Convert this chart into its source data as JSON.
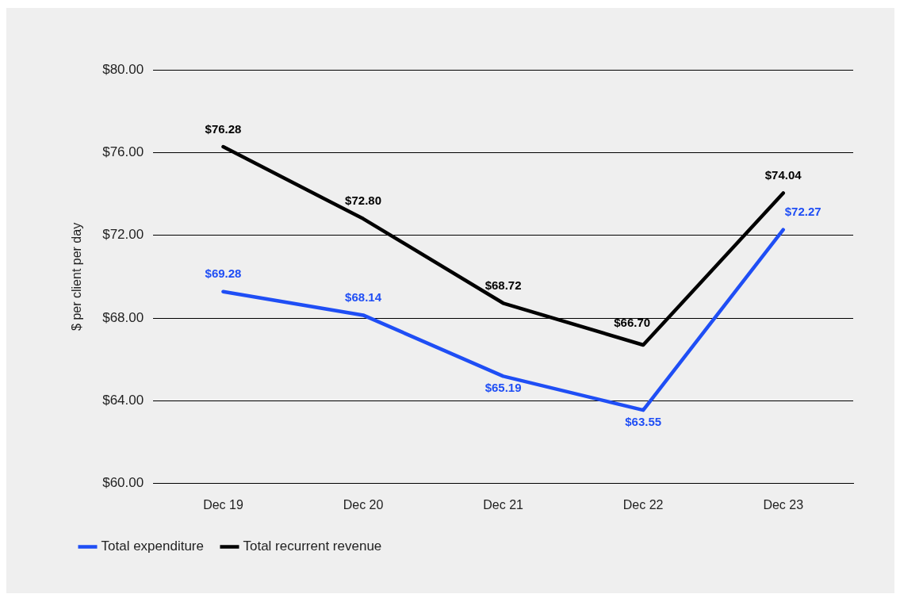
{
  "chart_data": {
    "type": "line",
    "ylabel": "$ per client per day",
    "categories": [
      "Dec 19",
      "Dec 20",
      "Dec 21",
      "Dec 22",
      "Dec 23"
    ],
    "series": [
      {
        "name": "Total expenditure",
        "color": "#1f4ef5",
        "values": [
          69.28,
          68.14,
          65.19,
          63.55,
          72.27
        ],
        "value_labels": [
          "$69.28",
          "$68.14",
          "$65.19",
          "$63.55",
          "$72.27"
        ]
      },
      {
        "name": "Total recurrent revenue",
        "color": "#000000",
        "values": [
          76.28,
          72.8,
          68.72,
          66.7,
          74.04
        ],
        "value_labels": [
          "$76.28",
          "$72.80",
          "$68.72",
          "$66.70",
          "$74.04"
        ]
      }
    ],
    "ylim": [
      60,
      80
    ],
    "yticks": [
      {
        "value": 60,
        "label": "$60.00"
      },
      {
        "value": 64,
        "label": "$64.00"
      },
      {
        "value": 68,
        "label": "$68.00"
      },
      {
        "value": 72,
        "label": "$72.00"
      },
      {
        "value": 76,
        "label": "$76.00"
      },
      {
        "value": 80,
        "label": "$80.00"
      }
    ],
    "grid": "y",
    "legend": "bottom left",
    "marker": "none",
    "line_style": "solid"
  }
}
